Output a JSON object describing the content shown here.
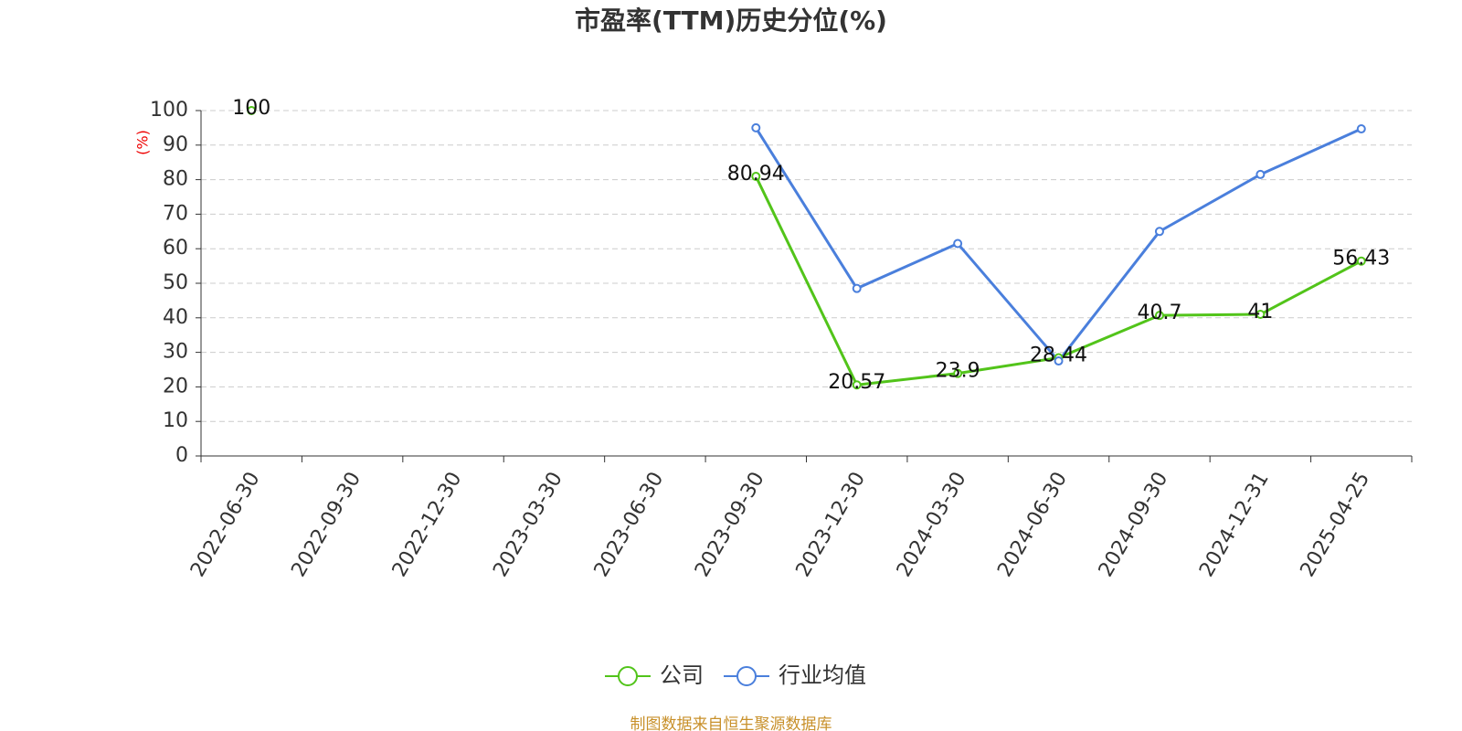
{
  "chart_data": {
    "type": "line",
    "title": "市盈率(TTM)历史分位(%)",
    "y_label": "(%)",
    "categories": [
      "2022-06-30",
      "2022-09-30",
      "2022-12-30",
      "2023-03-30",
      "2023-06-30",
      "2023-09-30",
      "2023-12-30",
      "2024-03-30",
      "2024-06-30",
      "2024-09-30",
      "2024-12-31",
      "2025-04-25"
    ],
    "series": [
      {
        "name": "公司",
        "color": "#52c41a",
        "values": [
          100,
          null,
          null,
          null,
          null,
          80.94,
          20.57,
          23.9,
          28.44,
          40.7,
          41,
          56.43
        ],
        "show_labels": true
      },
      {
        "name": "行业均值",
        "color": "#4a7fdc",
        "values": [
          null,
          null,
          null,
          null,
          null,
          95,
          48.5,
          61.5,
          27.5,
          65,
          81.5,
          94.7
        ],
        "show_labels": false
      }
    ],
    "ylim": [
      0,
      100
    ],
    "yticks": [
      0,
      10,
      20,
      30,
      40,
      50,
      60,
      70,
      80,
      90,
      100
    ],
    "grid": true,
    "source": "制图数据来自恒生聚源数据库"
  }
}
